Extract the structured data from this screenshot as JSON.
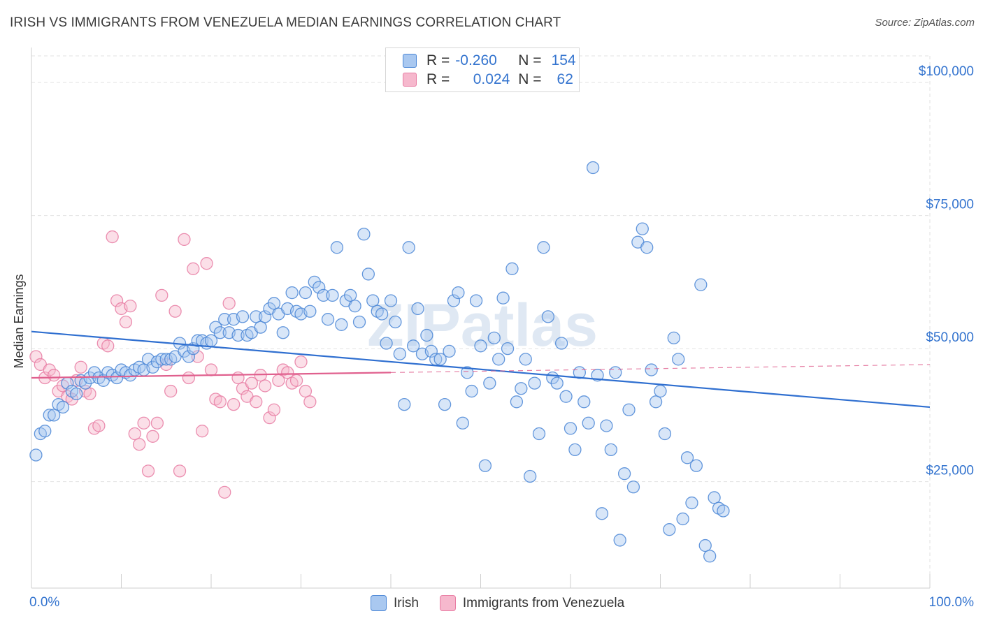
{
  "title": "IRISH VS IMMIGRANTS FROM VENEZUELA MEDIAN EARNINGS CORRELATION CHART",
  "source": "Source: ZipAtlas.com",
  "watermark": "ZIPatlas",
  "legend": {
    "rows": [
      {
        "r_label": "R =",
        "r_value": "-0.260",
        "n_label": "N =",
        "n_value": "154"
      },
      {
        "r_label": "R =",
        "r_value": "0.024",
        "n_label": "N =",
        "n_value": "62"
      }
    ]
  },
  "colors": {
    "irish_fill": "#a9c8f0",
    "irish_stroke": "#4a86d6",
    "irish_line": "#2f6fd0",
    "venezuela_fill": "#f6b8cd",
    "venezuela_stroke": "#e87ca3",
    "venezuela_line": "#e0608e",
    "axis_text": "#3474cf",
    "grid": "#e2e2e2"
  },
  "chart_data": {
    "type": "scatter",
    "title": "IRISH VS IMMIGRANTS FROM VENEZUELA MEDIAN EARNINGS CORRELATION CHART",
    "xlabel": "",
    "ylabel": "Median Earnings",
    "xlim": [
      0,
      100
    ],
    "ylim": [
      5000,
      105000
    ],
    "x_tick_labels": [
      "0.0%",
      "100.0%"
    ],
    "y_ticks": [
      25000,
      50000,
      75000,
      100000
    ],
    "y_tick_labels": [
      "$25,000",
      "$50,000",
      "$75,000",
      "$100,000"
    ],
    "grid": true,
    "legend_position": "bottom",
    "series": [
      {
        "name": "Irish",
        "r": -0.26,
        "n": 154,
        "trend": {
          "x": [
            0,
            100
          ],
          "y": [
            53200,
            39000
          ]
        },
        "points": [
          [
            0.5,
            30000
          ],
          [
            1,
            34000
          ],
          [
            1.5,
            34500
          ],
          [
            2,
            37500
          ],
          [
            2.5,
            37500
          ],
          [
            3,
            39500
          ],
          [
            3.5,
            39000
          ],
          [
            4,
            43500
          ],
          [
            4.5,
            42000
          ],
          [
            5,
            41500
          ],
          [
            5.5,
            44000
          ],
          [
            6,
            43500
          ],
          [
            6.5,
            44500
          ],
          [
            7,
            45500
          ],
          [
            7.5,
            44500
          ],
          [
            8,
            44000
          ],
          [
            8.5,
            45500
          ],
          [
            9,
            45000
          ],
          [
            9.5,
            44500
          ],
          [
            10,
            46000
          ],
          [
            10.5,
            45500
          ],
          [
            11,
            45000
          ],
          [
            11.5,
            46000
          ],
          [
            12,
            46500
          ],
          [
            12.5,
            46000
          ],
          [
            13,
            48000
          ],
          [
            13.5,
            46500
          ],
          [
            14,
            47500
          ],
          [
            14.5,
            48000
          ],
          [
            15,
            48000
          ],
          [
            15.5,
            48000
          ],
          [
            16,
            48500
          ],
          [
            16.5,
            51000
          ],
          [
            17,
            49500
          ],
          [
            17.5,
            48500
          ],
          [
            18,
            50000
          ],
          [
            18.5,
            51500
          ],
          [
            19,
            51500
          ],
          [
            19.5,
            51000
          ],
          [
            20,
            51500
          ],
          [
            20.5,
            54000
          ],
          [
            21,
            53000
          ],
          [
            21.5,
            55500
          ],
          [
            22,
            53000
          ],
          [
            22.5,
            55500
          ],
          [
            23,
            52500
          ],
          [
            23.5,
            56000
          ],
          [
            24,
            52500
          ],
          [
            24.5,
            53000
          ],
          [
            25,
            56000
          ],
          [
            25.5,
            54000
          ],
          [
            26,
            56000
          ],
          [
            26.5,
            57500
          ],
          [
            27,
            58500
          ],
          [
            27.5,
            56500
          ],
          [
            28,
            53000
          ],
          [
            28.5,
            57500
          ],
          [
            29,
            60500
          ],
          [
            29.5,
            57000
          ],
          [
            30,
            56500
          ],
          [
            30.5,
            60500
          ],
          [
            31,
            57000
          ],
          [
            31.5,
            62500
          ],
          [
            32,
            61500
          ],
          [
            32.5,
            60000
          ],
          [
            33,
            55500
          ],
          [
            33.5,
            60000
          ],
          [
            34,
            69000
          ],
          [
            34.5,
            54500
          ],
          [
            35,
            59000
          ],
          [
            35.5,
            60000
          ],
          [
            36,
            58000
          ],
          [
            36.5,
            55000
          ],
          [
            37,
            71500
          ],
          [
            37.5,
            64000
          ],
          [
            38,
            59000
          ],
          [
            38.5,
            57000
          ],
          [
            39,
            56500
          ],
          [
            39.5,
            51000
          ],
          [
            40,
            59000
          ],
          [
            40.5,
            55000
          ],
          [
            41,
            49000
          ],
          [
            41.5,
            39500
          ],
          [
            42,
            69000
          ],
          [
            42.5,
            50500
          ],
          [
            43,
            57500
          ],
          [
            43.5,
            49000
          ],
          [
            44,
            52500
          ],
          [
            44.5,
            49500
          ],
          [
            45,
            48000
          ],
          [
            45.5,
            48000
          ],
          [
            46,
            39500
          ],
          [
            46.5,
            49500
          ],
          [
            47,
            59000
          ],
          [
            47.5,
            60500
          ],
          [
            48,
            36000
          ],
          [
            48.5,
            45500
          ],
          [
            49,
            42000
          ],
          [
            49.5,
            59000
          ],
          [
            50,
            50500
          ],
          [
            50.5,
            28000
          ],
          [
            51,
            43500
          ],
          [
            51.5,
            52000
          ],
          [
            52,
            48000
          ],
          [
            52.5,
            59500
          ],
          [
            53,
            50000
          ],
          [
            53.5,
            65000
          ],
          [
            54,
            40000
          ],
          [
            54.5,
            42500
          ],
          [
            55,
            48000
          ],
          [
            55.5,
            26000
          ],
          [
            56,
            43500
          ],
          [
            56.5,
            34000
          ],
          [
            57,
            69000
          ],
          [
            57.5,
            56000
          ],
          [
            58,
            44500
          ],
          [
            58.5,
            43500
          ],
          [
            59,
            51000
          ],
          [
            59.5,
            41000
          ],
          [
            60,
            35000
          ],
          [
            60.5,
            31000
          ],
          [
            61,
            45500
          ],
          [
            61.5,
            40000
          ],
          [
            62,
            36000
          ],
          [
            62.5,
            84000
          ],
          [
            63,
            45000
          ],
          [
            63.5,
            19000
          ],
          [
            64,
            35500
          ],
          [
            64.5,
            31000
          ],
          [
            65,
            45500
          ],
          [
            65.5,
            14000
          ],
          [
            66,
            26500
          ],
          [
            66.5,
            38500
          ],
          [
            67,
            24000
          ],
          [
            67.5,
            70000
          ],
          [
            68,
            72500
          ],
          [
            68.5,
            69000
          ],
          [
            69,
            46000
          ],
          [
            69.5,
            40000
          ],
          [
            70,
            42000
          ],
          [
            70.5,
            34000
          ],
          [
            71,
            16000
          ],
          [
            71.5,
            52000
          ],
          [
            72,
            48000
          ],
          [
            72.5,
            18000
          ],
          [
            73,
            29500
          ],
          [
            73.5,
            21000
          ],
          [
            74,
            28000
          ],
          [
            74.5,
            62000
          ],
          [
            75,
            13000
          ],
          [
            75.5,
            11000
          ],
          [
            76,
            22000
          ],
          [
            76.5,
            20000
          ],
          [
            77,
            19500
          ]
        ]
      },
      {
        "name": "Immigrants from Venezuela",
        "r": 0.024,
        "n": 62,
        "trend": {
          "x": [
            0,
            40
          ],
          "y": [
            44500,
            45500
          ]
        },
        "points": [
          [
            0.5,
            48500
          ],
          [
            1,
            47000
          ],
          [
            1.5,
            44500
          ],
          [
            2,
            46000
          ],
          [
            2.5,
            45000
          ],
          [
            3,
            42000
          ],
          [
            3.5,
            43000
          ],
          [
            4,
            41000
          ],
          [
            4.5,
            40500
          ],
          [
            5,
            44000
          ],
          [
            5.5,
            46500
          ],
          [
            6,
            42000
          ],
          [
            6.5,
            41500
          ],
          [
            7,
            35000
          ],
          [
            7.5,
            35500
          ],
          [
            8,
            51000
          ],
          [
            8.5,
            50500
          ],
          [
            9,
            71000
          ],
          [
            9.5,
            59000
          ],
          [
            10,
            57500
          ],
          [
            10.5,
            55000
          ],
          [
            11,
            58000
          ],
          [
            11.5,
            34000
          ],
          [
            12,
            32000
          ],
          [
            12.5,
            36000
          ],
          [
            13,
            27000
          ],
          [
            13.5,
            33500
          ],
          [
            14,
            36000
          ],
          [
            14.5,
            60000
          ],
          [
            15,
            47000
          ],
          [
            15.5,
            42000
          ],
          [
            16,
            57000
          ],
          [
            16.5,
            27000
          ],
          [
            17,
            70500
          ],
          [
            17.5,
            44500
          ],
          [
            18,
            65000
          ],
          [
            18.5,
            48500
          ],
          [
            19,
            34500
          ],
          [
            19.5,
            66000
          ],
          [
            20,
            46000
          ],
          [
            20.5,
            40500
          ],
          [
            21,
            40000
          ],
          [
            21.5,
            23000
          ],
          [
            22,
            58500
          ],
          [
            22.5,
            39500
          ],
          [
            23,
            44500
          ],
          [
            23.5,
            42500
          ],
          [
            24,
            41000
          ],
          [
            24.5,
            43500
          ],
          [
            25,
            40000
          ],
          [
            25.5,
            45000
          ],
          [
            26,
            43000
          ],
          [
            26.5,
            37000
          ],
          [
            27,
            38500
          ],
          [
            27.5,
            44000
          ],
          [
            28,
            46000
          ],
          [
            28.5,
            45500
          ],
          [
            29,
            43500
          ],
          [
            29.5,
            44000
          ],
          [
            30,
            47500
          ],
          [
            30.5,
            42000
          ],
          [
            31,
            40000
          ]
        ]
      }
    ]
  },
  "bottom_legend": [
    {
      "label": "Irish"
    },
    {
      "label": "Immigrants from Venezuela"
    }
  ]
}
